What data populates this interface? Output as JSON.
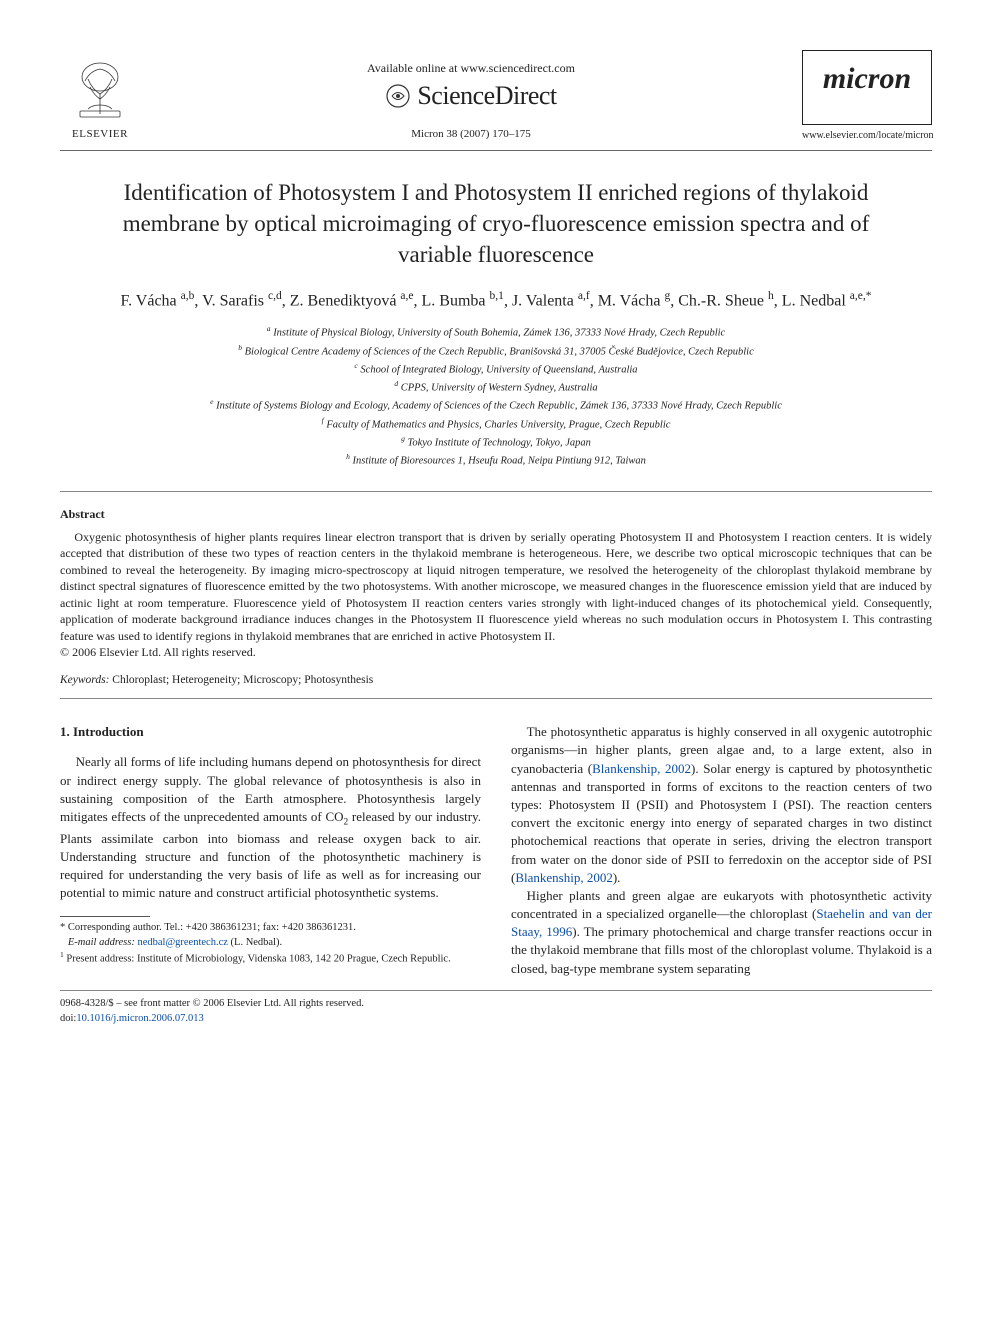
{
  "header": {
    "elsevier_label": "ELSEVIER",
    "available_online": "Available online at www.sciencedirect.com",
    "sciencedirect": "ScienceDirect",
    "citation": "Micron 38 (2007) 170–175",
    "journal_name": "micron",
    "journal_url": "www.elsevier.com/locate/micron"
  },
  "title": "Identification of Photosystem I and Photosystem II enriched regions of thylakoid membrane by optical microimaging of cryo-fluorescence emission spectra and of variable fluorescence",
  "authors_html": "F. Vácha <sup>a,b</sup>, V. Sarafis <sup>c,d</sup>, Z. Benediktyová <sup>a,e</sup>, L. Bumba <sup>b,1</sup>, J. Valenta <sup>a,f</sup>, M. Vácha <sup>g</sup>, Ch.-R. Sheue <sup>h</sup>, L. Nedbal <sup>a,e,*</sup>",
  "affiliations": [
    "<sup>a</sup> Institute of Physical Biology, University of South Bohemia, Zámek 136, 37333 Nové Hrady, Czech Republic",
    "<sup>b</sup> Biological Centre Academy of Sciences of the Czech Republic, Branišovská 31, 37005 České Budějovice, Czech Republic",
    "<sup>c</sup> School of Integrated Biology, University of Queensland, Australia",
    "<sup>d</sup> CPPS, University of Western Sydney, Australia",
    "<sup>e</sup> Institute of Systems Biology and Ecology, Academy of Sciences of the Czech Republic, Zámek 136, 37333 Nové Hrady, Czech Republic",
    "<sup>f</sup> Faculty of Mathematics and Physics, Charles University, Prague, Czech Republic",
    "<sup>g</sup> Tokyo Institute of Technology, Tokyo, Japan",
    "<sup>h</sup> Institute of Bioresources 1, Hseufu Road, Neipu Pintiung 912, Taiwan"
  ],
  "abstract_heading": "Abstract",
  "abstract": "Oxygenic photosynthesis of higher plants requires linear electron transport that is driven by serially operating Photosystem II and Photosystem I reaction centers. It is widely accepted that distribution of these two types of reaction centers in the thylakoid membrane is heterogeneous. Here, we describe two optical microscopic techniques that can be combined to reveal the heterogeneity. By imaging micro-spectroscopy at liquid nitrogen temperature, we resolved the heterogeneity of the chloroplast thylakoid membrane by distinct spectral signatures of fluorescence emitted by the two photosystems. With another microscope, we measured changes in the fluorescence emission yield that are induced by actinic light at room temperature. Fluorescence yield of Photosystem II reaction centers varies strongly with light-induced changes of its photochemical yield. Consequently, application of moderate background irradiance induces changes in the Photosystem II fluorescence yield whereas no such modulation occurs in Photosystem I. This contrasting feature was used to identify regions in thylakoid membranes that are enriched in active Photosystem II.",
  "copyright": "© 2006 Elsevier Ltd. All rights reserved.",
  "keywords_label": "Keywords:",
  "keywords": " Chloroplast; Heterogeneity; Microscopy; Photosynthesis",
  "section1_heading": "1. Introduction",
  "col1_p1": "Nearly all forms of life including humans depend on photosynthesis for direct or indirect energy supply. The global relevance of photosynthesis is also in sustaining composition of the Earth atmosphere. Photosynthesis largely mitigates effects of the unprecedented amounts of CO<sub>2</sub> released by our industry. Plants assimilate carbon into biomass and release oxygen back to air. Understanding structure and function of the photosynthetic machinery is required for understanding the very basis of life as well as for increasing our potential to mimic nature and construct artificial photosynthetic systems.",
  "col2_p1": "The photosynthetic apparatus is highly conserved in all oxygenic autotrophic organisms—in higher plants, green algae and, to a large extent, also in cyanobacteria (<span class=\"link\">Blankenship, 2002</span>). Solar energy is captured by photosynthetic antennas and transported in forms of excitons to the reaction centers of two types: Photosystem II (PSII) and Photosystem I (PSI). The reaction centers convert the excitonic energy into energy of separated charges in two distinct photochemical reactions that operate in series, driving the electron transport from water on the donor side of PSII to ferredoxin on the acceptor side of PSI (<span class=\"link\">Blankenship, 2002</span>).",
  "col2_p2": "Higher plants and green algae are eukaryots with photosynthetic activity concentrated in a specialized organelle—the chloroplast (<span class=\"link\">Staehelin and van der Staay, 1996</span>). The primary photochemical and charge transfer reactions occur in the thylakoid membrane that fills most of the chloroplast volume. Thylakoid is a closed, bag-type membrane system separating",
  "footnotes": {
    "corresponding": "* Corresponding author. Tel.: +420 386361231; fax: +420 386361231.",
    "email_label": "E-mail address:",
    "email": "nedbal@greentech.cz",
    "email_suffix": " (L. Nedbal).",
    "present": "<sup>1</sup> Present address: Institute of Microbiology, Videnska 1083, 142 20 Prague, Czech Republic."
  },
  "bottom": {
    "issn": "0968-4328/$ – see front matter © 2006 Elsevier Ltd. All rights reserved.",
    "doi_label": "doi:",
    "doi": "10.1016/j.micron.2006.07.013"
  },
  "colors": {
    "text": "#222222",
    "link": "#0b4ea2",
    "rule": "#888888",
    "background": "#ffffff"
  }
}
